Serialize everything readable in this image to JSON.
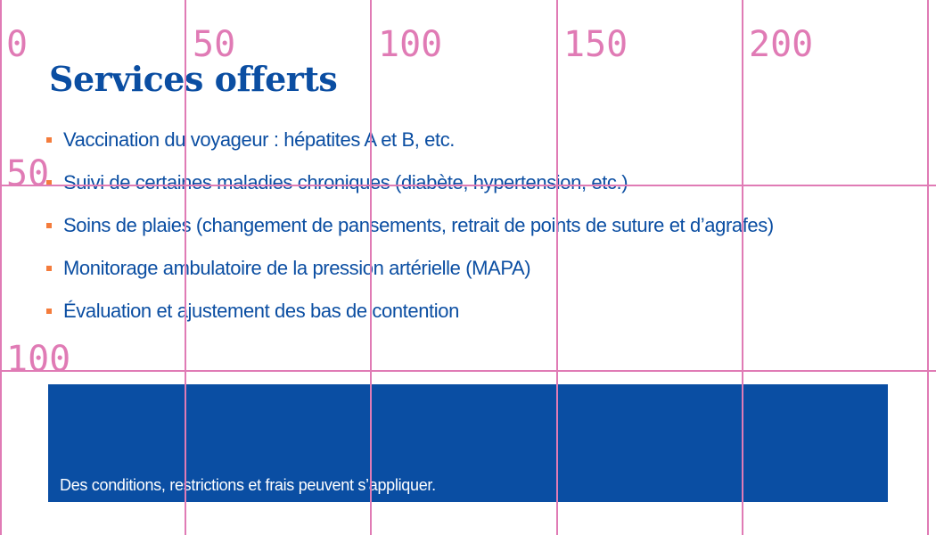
{
  "title": "Services offerts",
  "services": [
    "Vaccination du voyageur : hépatites A et B, etc.",
    "Suivi de certaines maladies chroniques (diabète, hypertension, etc.)",
    "Soins de plaies (changement de pansements, retrait de points de suture et d’agrafes)",
    "Monitorage ambulatoire de la pression artérielle (MAPA)",
    "Évaluation et ajustement des bas de contention"
  ],
  "disclaimer": "Des conditions, restrictions et frais peuvent s’appliquer.",
  "grid_overlay": {
    "x_labels": [
      "0",
      "50",
      "100",
      "150",
      "200"
    ],
    "y_labels": [
      "50",
      "100"
    ]
  },
  "colors": {
    "brand_blue": "#0b4ea2",
    "bullet_orange": "#f47c3c",
    "grid_pink": "#e07bb5"
  }
}
